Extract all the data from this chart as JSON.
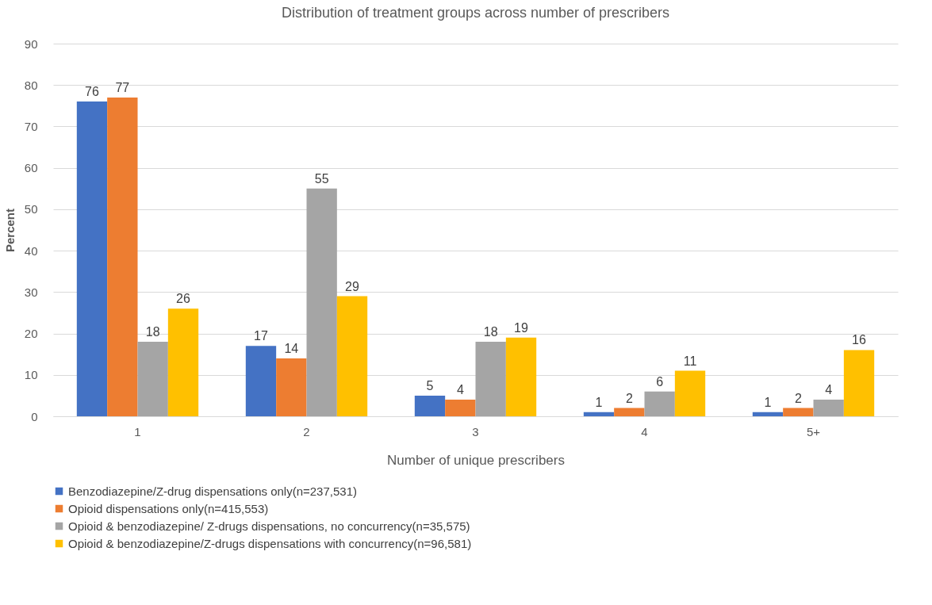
{
  "chart_data": {
    "type": "bar",
    "title": "Distribution of treatment groups  across number of prescribers",
    "xlabel": "Number of unique prescribers",
    "ylabel": "Percent",
    "categories": [
      "1",
      "2",
      "3",
      "4",
      "5+"
    ],
    "series": [
      {
        "name": "Benzodiazepine/Z-drug  dispensations only(n=237,531)",
        "color": "#4472c4",
        "values": [
          76,
          17,
          5,
          1,
          1
        ]
      },
      {
        "name": "Opioid dispensations only(n=415,553)",
        "color": "#ed7d31",
        "values": [
          77,
          14,
          4,
          2,
          2
        ]
      },
      {
        "name": "Opioid & benzodiazepine/ Z-drugs dispensations, no concurrency(n=35,575)",
        "color": "#a5a5a5",
        "values": [
          18,
          55,
          18,
          6,
          4
        ]
      },
      {
        "name": "Opioid & benzodiazepine/Z-drugs dispensations with concurrency(n=96,581)",
        "color": "#ffc000",
        "values": [
          26,
          29,
          19,
          11,
          16
        ]
      }
    ],
    "ylim": [
      0,
      90
    ],
    "yticks": [
      0,
      10,
      20,
      30,
      40,
      50,
      60,
      70,
      80,
      90
    ],
    "grid": "y",
    "legend": "bottom",
    "data_labels": true
  }
}
